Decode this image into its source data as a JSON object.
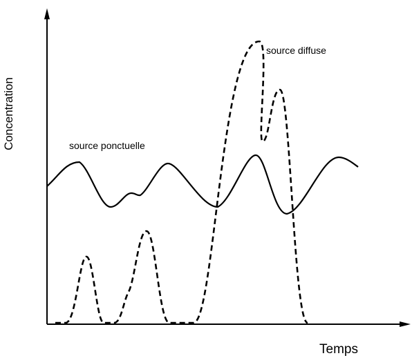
{
  "y_axis": {
    "label": "Concentration"
  },
  "x_axis": {
    "label": "Temps"
  },
  "curves": [
    {
      "label": "source ponctuelle"
    },
    {
      "label": "source diffuse"
    }
  ]
}
